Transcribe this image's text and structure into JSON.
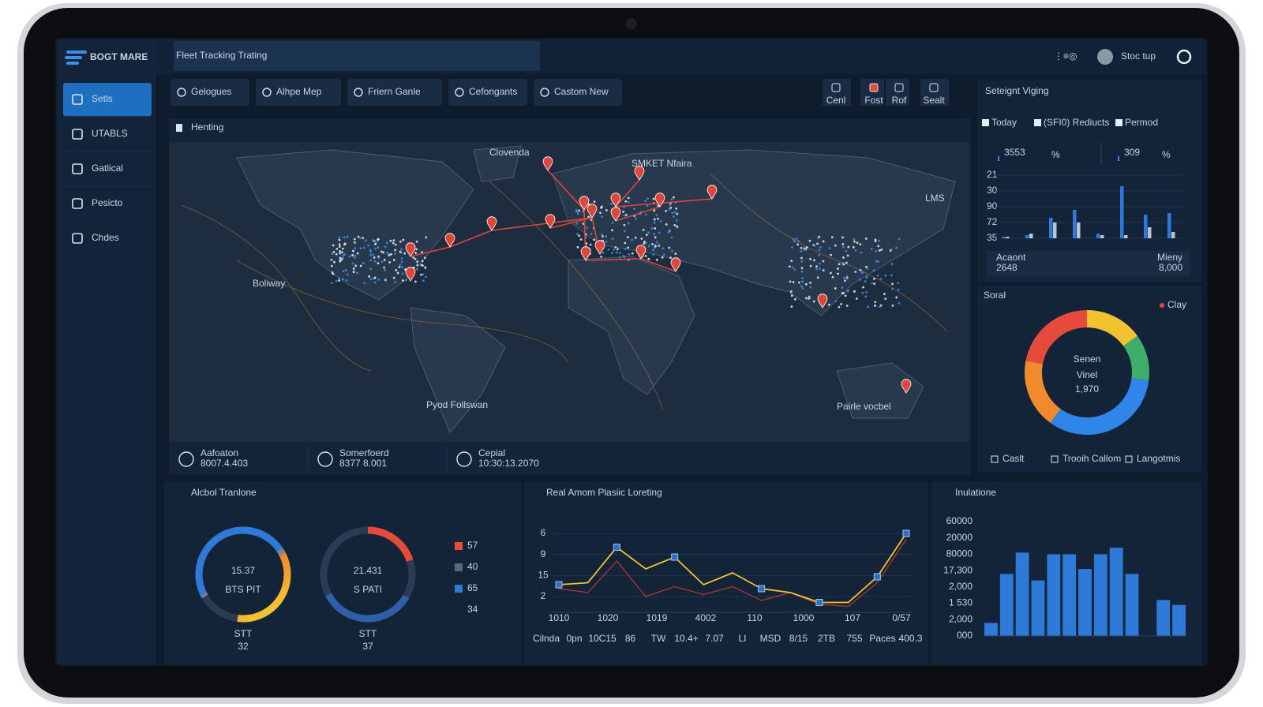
{
  "brand": "BOGT MARE",
  "header": {
    "title": "Fleet Tracking Trating",
    "user": "Stoc tup"
  },
  "nav": [
    "Setls",
    "UTABLS",
    "Gatlical",
    "Pesicto",
    "Chdes"
  ],
  "toolbar": [
    "Gelogues",
    "Alhpe Mep",
    "Friern Ganle",
    "Cefongants",
    "Castom New"
  ],
  "tools": [
    "Cenl",
    "Fost",
    "Rof",
    "Sealt"
  ],
  "map": {
    "title": "Henting",
    "labels": [
      "Clovenda",
      "SMKET Nfaira",
      "LMS",
      "Boliway",
      "Pyod Follswan",
      "Pairle vocbel"
    ],
    "stats": [
      {
        "label": "Aafoaton",
        "value": "8007.4.403"
      },
      {
        "label": "Somerfoerd",
        "value": "8377 8.001"
      },
      {
        "label": "Cepial",
        "value": "10:30:13.2070"
      }
    ]
  },
  "overview": {
    "title": "Seteignt Viging",
    "legend": [
      "Today",
      "(SFI0) Rediucts",
      "Permod"
    ],
    "kpis": [
      {
        "value": 3553,
        "unit": "%"
      },
      {
        "value": 309,
        "unit": "%"
      }
    ],
    "chart": {
      "type": "bar",
      "y_labels": [
        "21",
        "30",
        "90",
        "72",
        "35"
      ],
      "ylim": [
        0,
        4
      ],
      "series": [
        {
          "color": "#2f7ad9",
          "values": [
            0.1,
            0.2,
            1.3,
            1.8,
            0.3,
            3.3,
            1.5,
            1.6
          ]
        },
        {
          "color": "#b8c4d4",
          "values": [
            0.1,
            0.3,
            1.0,
            1.0,
            0.2,
            0.2,
            0.7,
            0.4
          ]
        }
      ]
    },
    "footer": [
      {
        "label": "Acaont",
        "value": "2648"
      },
      {
        "label": "Mieny",
        "value": "8,000"
      }
    ]
  },
  "donut": {
    "title": "Soral",
    "legend": "Clay",
    "center": {
      "title": "Senen",
      "subtitle": "Vinel",
      "value": "1,970"
    },
    "chart": {
      "type": "pie",
      "values": [
        15,
        12,
        33,
        18,
        22
      ],
      "colors": [
        "#f2c230",
        "#3fae6a",
        "#2f86e8",
        "#f08a2c",
        "#e64a3b"
      ]
    },
    "footer": [
      "Caslt",
      "Trooih Callom",
      "Langotmis"
    ]
  },
  "gauges": {
    "title": "Alcbol Tranlone",
    "items": [
      {
        "value": "15.37",
        "unit": "BTS PIT",
        "caption": "STT",
        "total": "32"
      },
      {
        "value": "21.431",
        "unit": "S PATI",
        "caption": "STT",
        "total": "37"
      }
    ],
    "legend": [
      {
        "color": "#e64a3b",
        "value": 57
      },
      {
        "color": "#5a6778",
        "value": 40
      },
      {
        "color": "#2f7ad9",
        "value": 65
      },
      {
        "color": null,
        "value": 34
      }
    ]
  },
  "line_panel": {
    "title": "Real Amom Plasiic Loreting",
    "chart": {
      "type": "line",
      "y_labels": [
        "6",
        "9",
        "15",
        "2"
      ],
      "ylim": [
        0,
        4
      ],
      "x_labels": [
        "1010",
        "1020",
        "1019",
        "4002",
        "110",
        "1000",
        "107",
        "0/57"
      ],
      "bottom_labels": [
        "Cilnda",
        "0pn",
        "10C15",
        "86",
        "TW",
        "10.4+",
        "7.07",
        "LI",
        "MSD",
        "8/15",
        "2TB",
        "755",
        "Paces",
        "400.3"
      ],
      "series": [
        {
          "color": "#f2c230",
          "values": [
            1.4,
            1.5,
            3.3,
            2.2,
            2.8,
            1.4,
            2.0,
            1.2,
            1.0,
            0.5,
            0.5,
            1.8,
            4.0
          ]
        },
        {
          "color": "#b8382e",
          "values": [
            1.2,
            1.0,
            2.6,
            0.8,
            1.3,
            0.9,
            1.3,
            0.6,
            1.0,
            0.4,
            0.3,
            1.5,
            3.7
          ]
        }
      ]
    }
  },
  "bars_panel": {
    "title": "Inulatione",
    "chart": {
      "type": "bar",
      "y_labels": [
        "60000",
        "20000",
        "80000",
        "17,300",
        "2,000",
        "1 530",
        "2,000",
        "000"
      ],
      "ylim": [
        0,
        7
      ],
      "color": "#2f7ad9",
      "values": [
        0.8,
        3.8,
        5.1,
        3.4,
        5.0,
        5.0,
        4.1,
        5.0,
        5.4,
        3.8,
        0,
        2.2,
        1.9
      ]
    }
  }
}
